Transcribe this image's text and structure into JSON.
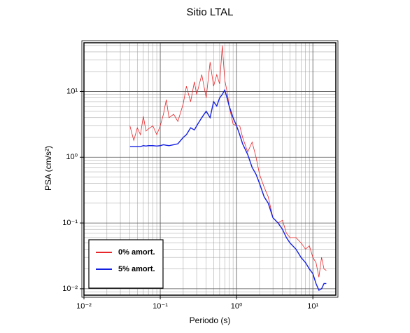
{
  "chart_data": {
    "type": "line",
    "title": "Sitio LTAL",
    "xlabel": "Periodo (s)",
    "ylabel": "PSA (cm/s²)",
    "log_x": true,
    "log_y": true,
    "grid": true,
    "legend": "lower left",
    "xlim": [
      0.01,
      20
    ],
    "ylim": [
      0.008,
      55
    ],
    "xticks": [
      {
        "value": 0.01,
        "label": "10⁻²"
      },
      {
        "value": 0.1,
        "label": "10⁻¹"
      },
      {
        "value": 1,
        "label": "10⁰"
      },
      {
        "value": 10,
        "label": "10¹"
      }
    ],
    "yticks": [
      {
        "value": 0.01,
        "label": "10⁻²"
      },
      {
        "value": 0.1,
        "label": "10⁻¹"
      },
      {
        "value": 1,
        "label": "10⁰"
      },
      {
        "value": 10,
        "label": "10¹"
      }
    ],
    "x": [
      0.04,
      0.045,
      0.05,
      0.055,
      0.06,
      0.065,
      0.07,
      0.08,
      0.09,
      0.1,
      0.11,
      0.12,
      0.13,
      0.15,
      0.17,
      0.2,
      0.22,
      0.25,
      0.28,
      0.3,
      0.35,
      0.4,
      0.45,
      0.5,
      0.55,
      0.6,
      0.65,
      0.7,
      0.75,
      0.8,
      0.9,
      1.0,
      1.1,
      1.2,
      1.4,
      1.6,
      1.8,
      2.0,
      2.3,
      2.6,
      3.0,
      3.5,
      4.0,
      4.5,
      5.0,
      6.0,
      7.0,
      8.0,
      9.0,
      10,
      11,
      12,
      13,
      14,
      15
    ],
    "series": [
      {
        "name": "0% amort.",
        "color": "#e8272b",
        "width": 0.8,
        "values": [
          3.0,
          1.8,
          2.8,
          2.2,
          4.2,
          2.5,
          2.7,
          3.0,
          2.2,
          3.0,
          4.5,
          7.5,
          4.0,
          4.5,
          3.5,
          6.5,
          12,
          7,
          14,
          9,
          18,
          8,
          28,
          12,
          18,
          13,
          50,
          15,
          10,
          6,
          3.2,
          3.0,
          3.0,
          2.0,
          1.2,
          1.7,
          1.0,
          0.55,
          0.35,
          0.25,
          0.12,
          0.1,
          0.11,
          0.07,
          0.06,
          0.06,
          0.05,
          0.04,
          0.045,
          0.03,
          0.025,
          0.015,
          0.03,
          0.02,
          0.019
        ]
      },
      {
        "name": "5% amort.",
        "color": "#1420e0",
        "width": 1.4,
        "values": [
          1.45,
          1.45,
          1.45,
          1.45,
          1.5,
          1.48,
          1.5,
          1.5,
          1.48,
          1.5,
          1.55,
          1.52,
          1.5,
          1.55,
          1.6,
          2.0,
          2.2,
          2.8,
          2.6,
          3.0,
          4.0,
          5.0,
          4.0,
          7.0,
          6.0,
          8.0,
          9.0,
          10.5,
          8.0,
          6.0,
          4.0,
          3.0,
          2.2,
          1.6,
          1.1,
          0.7,
          0.55,
          0.4,
          0.25,
          0.2,
          0.12,
          0.1,
          0.08,
          0.06,
          0.05,
          0.04,
          0.03,
          0.025,
          0.02,
          0.017,
          0.012,
          0.0095,
          0.01,
          0.012,
          0.012
        ]
      }
    ]
  }
}
